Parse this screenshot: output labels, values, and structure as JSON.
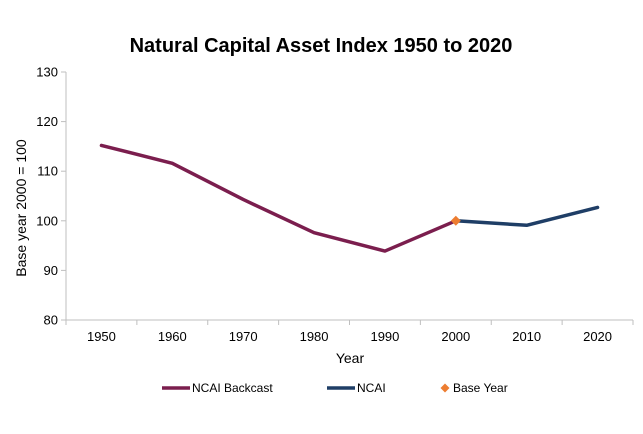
{
  "chart_data": {
    "type": "line",
    "title": "Natural Capital Asset Index 1950 to 2020",
    "xlabel": "Year",
    "ylabel": "Base year 2000 = 100",
    "categories": [
      "1950",
      "1960",
      "1970",
      "1980",
      "1990",
      "2000",
      "2010",
      "2020"
    ],
    "ylim": [
      80,
      130
    ],
    "yticks": [
      80,
      90,
      100,
      110,
      120,
      130
    ],
    "grid": false,
    "legend_position": "bottom",
    "series": [
      {
        "name": "NCAI Backcast",
        "color": "#7B1E4E",
        "marker": "none",
        "values": [
          115.2,
          111.6,
          104.3,
          97.6,
          93.9,
          100.0,
          null,
          null
        ]
      },
      {
        "name": "NCAI",
        "color": "#1F3E66",
        "marker": "none",
        "values": [
          null,
          null,
          null,
          null,
          null,
          100.0,
          99.1,
          102.7
        ]
      },
      {
        "name": "Base Year",
        "color": "#ED7D31",
        "marker": "diamond",
        "values": [
          null,
          null,
          null,
          null,
          null,
          100.0,
          null,
          null
        ]
      }
    ]
  }
}
